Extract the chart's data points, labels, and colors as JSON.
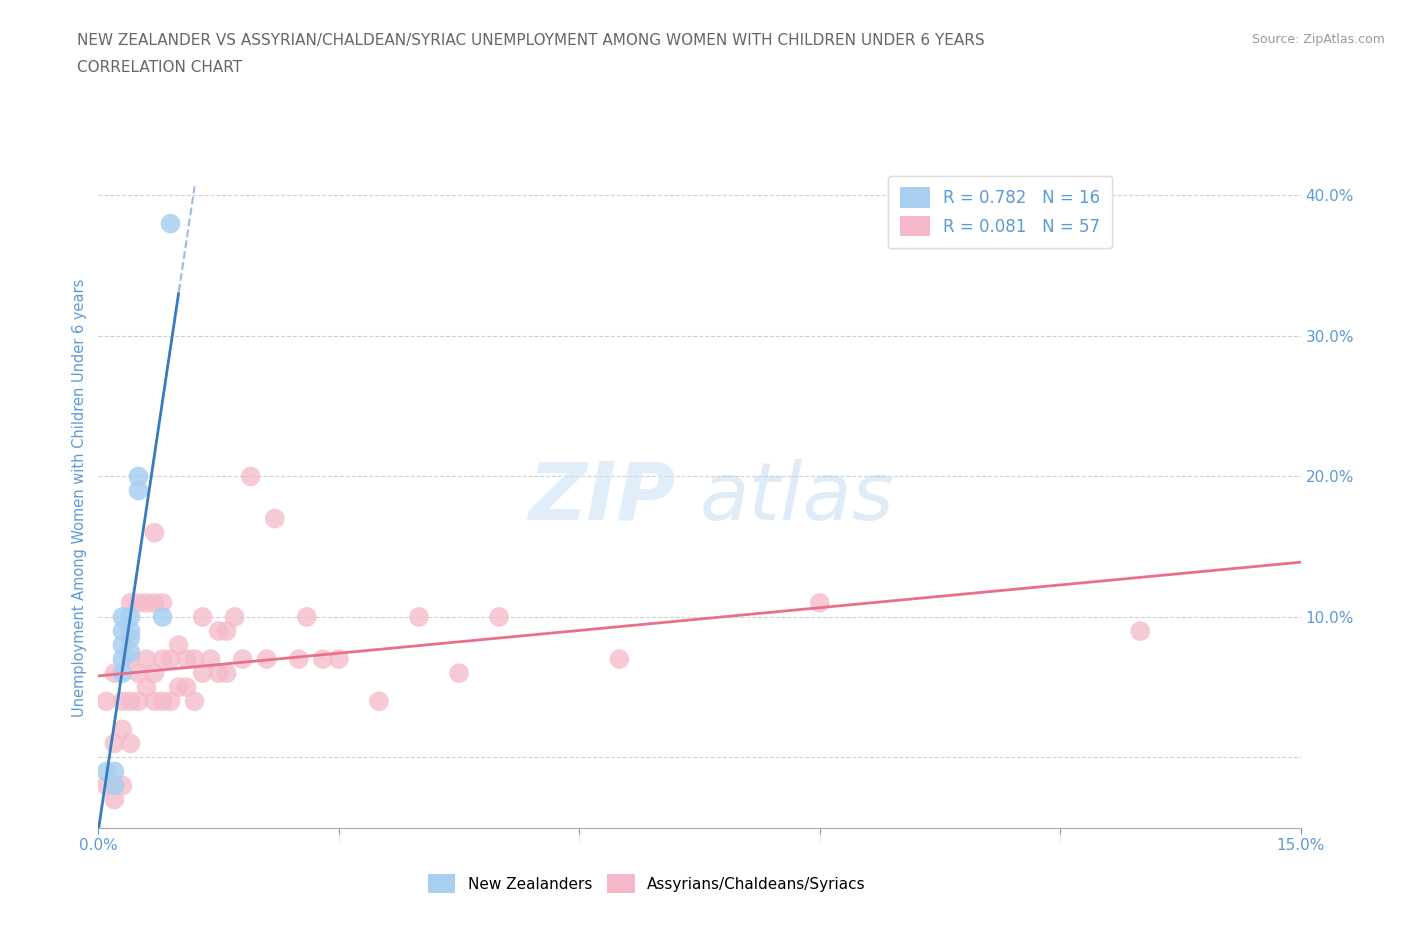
{
  "title_line1": "NEW ZEALANDER VS ASSYRIAN/CHALDEAN/SYRIAC UNEMPLOYMENT AMONG WOMEN WITH CHILDREN UNDER 6 YEARS",
  "title_line2": "CORRELATION CHART",
  "source": "Source: ZipAtlas.com",
  "ylabel": "Unemployment Among Women with Children Under 6 years",
  "xlim": [
    0.0,
    0.15
  ],
  "ylim": [
    -0.05,
    0.42
  ],
  "yticks_right": [
    0.0,
    0.1,
    0.2,
    0.3,
    0.4
  ],
  "ytick_right_labels": [
    "",
    "10.0%",
    "20.0%",
    "30.0%",
    "40.0%"
  ],
  "grid_color": "#cccccc",
  "background_color": "#ffffff",
  "blue_R": 0.782,
  "blue_N": 16,
  "pink_R": 0.081,
  "pink_N": 57,
  "blue_color": "#a8cff0",
  "pink_color": "#f5b8c8",
  "blue_line_color": "#3a7abf",
  "pink_line_color": "#e8708a",
  "axis_label_color": "#5b9bd5",
  "title_color": "#666666",
  "blue_scatter_x": [
    0.001,
    0.002,
    0.002,
    0.003,
    0.003,
    0.003,
    0.003,
    0.003,
    0.004,
    0.004,
    0.004,
    0.004,
    0.005,
    0.005,
    0.008,
    0.009
  ],
  "blue_scatter_y": [
    -0.01,
    -0.02,
    -0.01,
    0.06,
    0.07,
    0.08,
    0.09,
    0.1,
    0.075,
    0.085,
    0.09,
    0.1,
    0.19,
    0.2,
    0.1,
    0.38
  ],
  "pink_scatter_x": [
    0.001,
    0.001,
    0.002,
    0.002,
    0.002,
    0.002,
    0.003,
    0.003,
    0.003,
    0.004,
    0.004,
    0.004,
    0.004,
    0.005,
    0.005,
    0.005,
    0.006,
    0.006,
    0.006,
    0.007,
    0.007,
    0.007,
    0.007,
    0.008,
    0.008,
    0.008,
    0.009,
    0.009,
    0.01,
    0.01,
    0.011,
    0.011,
    0.012,
    0.012,
    0.013,
    0.013,
    0.014,
    0.015,
    0.015,
    0.016,
    0.016,
    0.017,
    0.018,
    0.019,
    0.021,
    0.022,
    0.025,
    0.026,
    0.028,
    0.03,
    0.035,
    0.04,
    0.045,
    0.05,
    0.065,
    0.09,
    0.13
  ],
  "pink_scatter_y": [
    0.04,
    -0.02,
    0.01,
    -0.02,
    -0.03,
    0.06,
    0.04,
    0.02,
    -0.02,
    0.04,
    0.01,
    0.07,
    0.11,
    0.04,
    0.06,
    0.11,
    0.05,
    0.07,
    0.11,
    0.04,
    0.06,
    0.11,
    0.16,
    0.04,
    0.07,
    0.11,
    0.04,
    0.07,
    0.05,
    0.08,
    0.05,
    0.07,
    0.04,
    0.07,
    0.06,
    0.1,
    0.07,
    0.06,
    0.09,
    0.06,
    0.09,
    0.1,
    0.07,
    0.2,
    0.07,
    0.17,
    0.07,
    0.1,
    0.07,
    0.07,
    0.04,
    0.1,
    0.06,
    0.1,
    0.07,
    0.11,
    0.09
  ],
  "legend_label_blue": "New Zealanders",
  "legend_label_pink": "Assyrians/Chaldeans/Syriacs"
}
